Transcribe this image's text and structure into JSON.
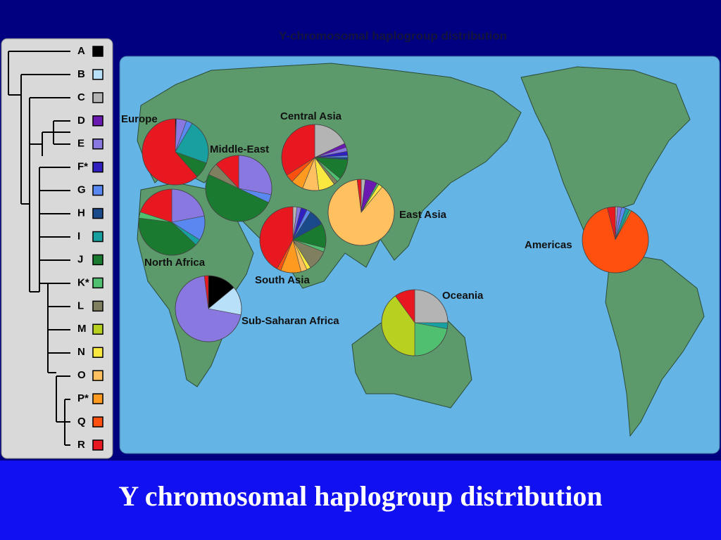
{
  "slide_title": "Y chromosomal haplogroup distribution",
  "map_title": "Y-chromosomal haplogroup distribution",
  "haplogroups": [
    {
      "name": "A",
      "color": "#000000"
    },
    {
      "name": "B",
      "color": "#b8e0f8"
    },
    {
      "name": "C",
      "color": "#b4b4b4"
    },
    {
      "name": "D",
      "color": "#6a1ab0"
    },
    {
      "name": "E",
      "color": "#8878e0"
    },
    {
      "name": "F*",
      "color": "#3020c0"
    },
    {
      "name": "G",
      "color": "#5888f0"
    },
    {
      "name": "H",
      "color": "#1a4a8a"
    },
    {
      "name": "I",
      "color": "#18a0a0"
    },
    {
      "name": "J",
      "color": "#1a7a30"
    },
    {
      "name": "K*",
      "color": "#50c070"
    },
    {
      "name": "L",
      "color": "#808060"
    },
    {
      "name": "M",
      "color": "#b8d020"
    },
    {
      "name": "N",
      "color": "#f8e840"
    },
    {
      "name": "O",
      "color": "#ffc060"
    },
    {
      "name": "P*",
      "color": "#ff9a20"
    },
    {
      "name": "Q",
      "color": "#ff5010"
    },
    {
      "name": "R",
      "color": "#e81820"
    }
  ],
  "regions": [
    {
      "label": "Europe",
      "values": [
        0.5,
        0,
        0,
        0,
        5,
        0,
        3,
        0,
        22,
        8,
        0,
        0,
        0,
        0,
        0,
        0,
        0,
        61.5
      ]
    },
    {
      "label": "Middle-East",
      "values": [
        0,
        0,
        0,
        0,
        28,
        0,
        4,
        0,
        0,
        50,
        0,
        6,
        0,
        0,
        0,
        0,
        0,
        12
      ]
    },
    {
      "label": "North Africa",
      "values": [
        0,
        0,
        0,
        0,
        22,
        0,
        12,
        0,
        3,
        40,
        3,
        0,
        0,
        0,
        0,
        0,
        0,
        20
      ]
    },
    {
      "label": "Sub-Saharan Africa",
      "values": [
        14,
        14,
        0,
        0,
        70,
        0,
        0,
        0,
        0,
        0,
        0,
        0,
        0,
        0,
        0,
        0,
        0,
        2
      ]
    },
    {
      "label": "Central Asia",
      "values": [
        0,
        0,
        18,
        2,
        2,
        2,
        1,
        1,
        0,
        10,
        2,
        2,
        0,
        8,
        8,
        6,
        4,
        34
      ]
    },
    {
      "label": "South Asia",
      "values": [
        0,
        0,
        2,
        0,
        2,
        3,
        2,
        8,
        0,
        12,
        2,
        10,
        0,
        2,
        3,
        10,
        2,
        42
      ]
    },
    {
      "label": "East Asia",
      "values": [
        0,
        0,
        2,
        6,
        0,
        0,
        0,
        0,
        0,
        0,
        1,
        0,
        0,
        2,
        87,
        0,
        0,
        2
      ]
    },
    {
      "label": "Oceania",
      "values": [
        0,
        0,
        25,
        0,
        0,
        0,
        0,
        0,
        3,
        0,
        22,
        0,
        40,
        0,
        0,
        0,
        0,
        10
      ]
    },
    {
      "label": "Americas",
      "values": [
        0,
        0,
        1,
        0,
        2,
        0,
        2,
        0,
        2,
        0,
        1,
        0,
        0,
        0,
        0,
        0,
        88,
        4
      ]
    }
  ]
}
